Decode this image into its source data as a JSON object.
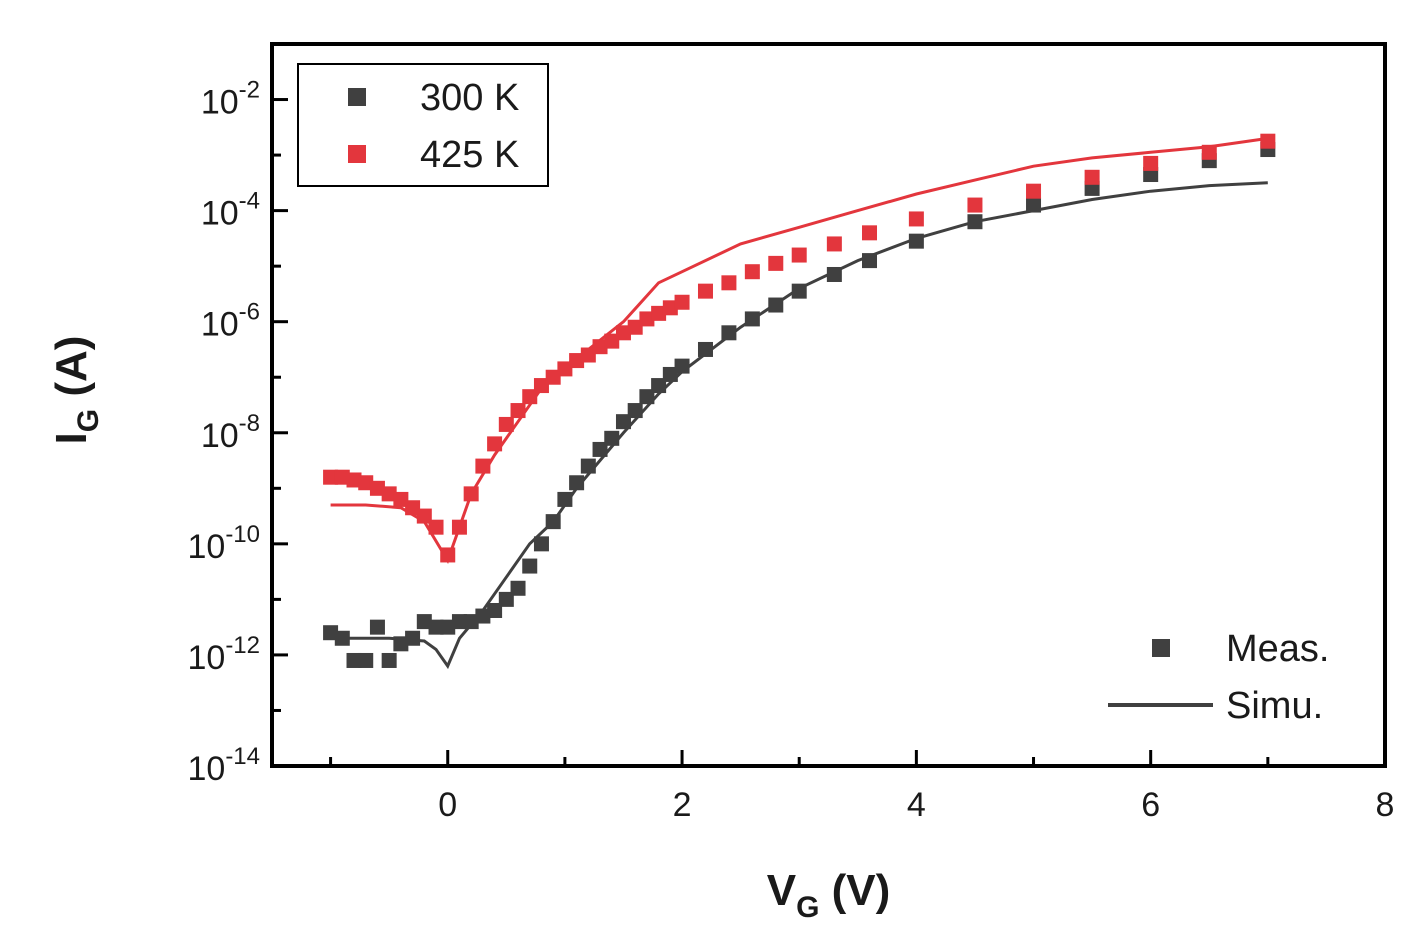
{
  "chart_data": {
    "type": "scatter",
    "title": "",
    "xlabel": {
      "main": "V",
      "sub": "G",
      "unit": " (V)"
    },
    "ylabel": {
      "main": "I",
      "sub": "G",
      "unit": " (A)"
    },
    "xlim": [
      -1.5,
      8
    ],
    "ylim_log10": [
      -14,
      -1
    ],
    "yscale": "log",
    "x_ticks": [
      {
        "value": 0,
        "label": "0"
      },
      {
        "value": 2,
        "label": "2"
      },
      {
        "value": 4,
        "label": "4"
      },
      {
        "value": 6,
        "label": "6"
      },
      {
        "value": 8,
        "label": "8"
      }
    ],
    "y_ticks": [
      {
        "exp": -2,
        "base": "10",
        "sup": "-2"
      },
      {
        "exp": -4,
        "base": "10",
        "sup": "-4"
      },
      {
        "exp": -6,
        "base": "10",
        "sup": "-6"
      },
      {
        "exp": -8,
        "base": "10",
        "sup": "-8"
      },
      {
        "exp": -10,
        "base": "10",
        "sup": "-10"
      },
      {
        "exp": -12,
        "base": "10",
        "sup": "-12"
      },
      {
        "exp": -14,
        "base": "10",
        "sup": "-14"
      }
    ],
    "series": [
      {
        "name": "300 K",
        "color": "#404040",
        "measured_log10": [
          [
            -1.0,
            -11.6
          ],
          [
            -0.9,
            -11.7
          ],
          [
            -0.8,
            -12.1
          ],
          [
            -0.7,
            -12.1
          ],
          [
            -0.6,
            -11.5
          ],
          [
            -0.5,
            -12.1
          ],
          [
            -0.4,
            -11.8
          ],
          [
            -0.3,
            -11.7
          ],
          [
            -0.2,
            -11.4
          ],
          [
            -0.1,
            -11.5
          ],
          [
            0.0,
            -11.5
          ],
          [
            0.1,
            -11.4
          ],
          [
            0.2,
            -11.4
          ],
          [
            0.3,
            -11.3
          ],
          [
            0.4,
            -11.2
          ],
          [
            0.5,
            -11.0
          ],
          [
            0.6,
            -10.8
          ],
          [
            0.7,
            -10.4
          ],
          [
            0.8,
            -10.0
          ],
          [
            0.9,
            -9.6
          ],
          [
            1.0,
            -9.2
          ],
          [
            1.1,
            -8.9
          ],
          [
            1.2,
            -8.6
          ],
          [
            1.3,
            -8.3
          ],
          [
            1.4,
            -8.1
          ],
          [
            1.5,
            -7.8
          ],
          [
            1.6,
            -7.6
          ],
          [
            1.7,
            -7.35
          ],
          [
            1.8,
            -7.15
          ],
          [
            1.9,
            -6.95
          ],
          [
            2.0,
            -6.8
          ],
          [
            2.2,
            -6.5
          ],
          [
            2.4,
            -6.2
          ],
          [
            2.6,
            -5.95
          ],
          [
            2.8,
            -5.7
          ],
          [
            3.0,
            -5.45
          ],
          [
            3.3,
            -5.15
          ],
          [
            3.6,
            -4.9
          ],
          [
            4.0,
            -4.55
          ],
          [
            4.5,
            -4.2
          ],
          [
            5.0,
            -3.9
          ],
          [
            5.5,
            -3.6
          ],
          [
            6.0,
            -3.35
          ],
          [
            6.5,
            -3.1
          ],
          [
            7.0,
            -2.9
          ]
        ],
        "simulated_log10": [
          [
            -1.0,
            -11.7
          ],
          [
            -0.5,
            -11.7
          ],
          [
            -0.2,
            -11.75
          ],
          [
            -0.1,
            -11.9
          ],
          [
            0.0,
            -12.2
          ],
          [
            0.1,
            -11.7
          ],
          [
            0.3,
            -11.2
          ],
          [
            0.5,
            -10.6
          ],
          [
            0.7,
            -10.0
          ],
          [
            0.9,
            -9.6
          ],
          [
            1.1,
            -9.0
          ],
          [
            1.3,
            -8.5
          ],
          [
            1.5,
            -8.0
          ],
          [
            1.8,
            -7.3
          ],
          [
            2.0,
            -6.9
          ],
          [
            2.5,
            -6.1
          ],
          [
            3.0,
            -5.4
          ],
          [
            3.5,
            -4.9
          ],
          [
            4.0,
            -4.5
          ],
          [
            4.5,
            -4.2
          ],
          [
            5.0,
            -4.0
          ],
          [
            5.5,
            -3.8
          ],
          [
            6.0,
            -3.65
          ],
          [
            6.5,
            -3.55
          ],
          [
            7.0,
            -3.5
          ]
        ]
      },
      {
        "name": "425 K",
        "color": "#e3363d",
        "measured_log10": [
          [
            -1.0,
            -8.8
          ],
          [
            -0.9,
            -8.8
          ],
          [
            -0.8,
            -8.85
          ],
          [
            -0.7,
            -8.9
          ],
          [
            -0.6,
            -9.0
          ],
          [
            -0.5,
            -9.1
          ],
          [
            -0.4,
            -9.2
          ],
          [
            -0.3,
            -9.35
          ],
          [
            -0.2,
            -9.5
          ],
          [
            -0.1,
            -9.7
          ],
          [
            0.0,
            -10.2
          ],
          [
            0.1,
            -9.7
          ],
          [
            0.2,
            -9.1
          ],
          [
            0.3,
            -8.6
          ],
          [
            0.4,
            -8.2
          ],
          [
            0.5,
            -7.85
          ],
          [
            0.6,
            -7.6
          ],
          [
            0.7,
            -7.35
          ],
          [
            0.8,
            -7.15
          ],
          [
            0.9,
            -7.0
          ],
          [
            1.0,
            -6.85
          ],
          [
            1.1,
            -6.7
          ],
          [
            1.2,
            -6.6
          ],
          [
            1.3,
            -6.45
          ],
          [
            1.4,
            -6.35
          ],
          [
            1.5,
            -6.2
          ],
          [
            1.6,
            -6.1
          ],
          [
            1.7,
            -5.95
          ],
          [
            1.8,
            -5.85
          ],
          [
            1.9,
            -5.75
          ],
          [
            2.0,
            -5.65
          ],
          [
            2.2,
            -5.45
          ],
          [
            2.4,
            -5.3
          ],
          [
            2.6,
            -5.1
          ],
          [
            2.8,
            -4.95
          ],
          [
            3.0,
            -4.8
          ],
          [
            3.3,
            -4.6
          ],
          [
            3.6,
            -4.4
          ],
          [
            4.0,
            -4.15
          ],
          [
            4.5,
            -3.9
          ],
          [
            5.0,
            -3.65
          ],
          [
            5.5,
            -3.4
          ],
          [
            6.0,
            -3.15
          ],
          [
            6.5,
            -2.95
          ],
          [
            7.0,
            -2.75
          ]
        ],
        "simulated_log10": [
          [
            -1.0,
            -9.3
          ],
          [
            -0.7,
            -9.3
          ],
          [
            -0.4,
            -9.35
          ],
          [
            -0.2,
            -9.6
          ],
          [
            0.0,
            -10.3
          ],
          [
            0.2,
            -9.1
          ],
          [
            0.4,
            -8.4
          ],
          [
            0.6,
            -7.8
          ],
          [
            0.8,
            -7.2
          ],
          [
            1.0,
            -6.8
          ],
          [
            1.2,
            -6.5
          ],
          [
            1.5,
            -6.0
          ],
          [
            1.8,
            -5.3
          ],
          [
            2.0,
            -5.1
          ],
          [
            2.5,
            -4.6
          ],
          [
            3.0,
            -4.3
          ],
          [
            3.5,
            -4.0
          ],
          [
            4.0,
            -3.7
          ],
          [
            4.5,
            -3.45
          ],
          [
            5.0,
            -3.2
          ],
          [
            5.5,
            -3.05
          ],
          [
            6.0,
            -2.95
          ],
          [
            6.5,
            -2.85
          ],
          [
            7.0,
            -2.7
          ]
        ]
      }
    ],
    "legend_temperature": {
      "position": "top-left",
      "entries": [
        "300 K",
        "425 K"
      ]
    },
    "legend_type": {
      "position": "bottom-right",
      "entries": [
        {
          "label": "Meas.",
          "marker": "square"
        },
        {
          "label": "Simu.",
          "marker": "line"
        }
      ]
    }
  }
}
